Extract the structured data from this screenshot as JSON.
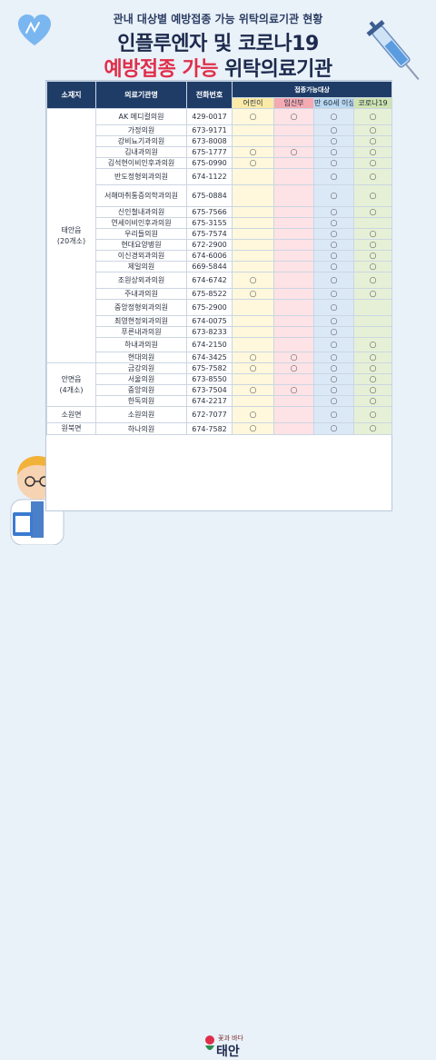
{
  "header": {
    "subtitle": "관내 대상별 예방접종 가능 위탁의료기관 현황",
    "title_line1": "인플루엔자 및 코로나19",
    "title_red": "예방접종 가능",
    "title_rest": "위탁의료기관"
  },
  "table": {
    "headers": {
      "region": "소재지",
      "name": "의료기관명",
      "phone": "전화번호",
      "target": "접종가능대상",
      "child": "어린이",
      "pregnant": "임신부",
      "elderly": "만 60세 이상",
      "covid": "코로나19"
    },
    "mark": "○",
    "groups": [
      {
        "region": "태안읍\n(20개소)",
        "rows": [
          {
            "name": "AK 메디컬의원",
            "phone": "429-0017",
            "child": true,
            "pregnant": true,
            "elderly": true,
            "covid": true
          },
          {
            "name": "가정의원",
            "phone": "673-9171",
            "child": false,
            "pregnant": false,
            "elderly": true,
            "covid": true
          },
          {
            "name": "강비뇨기과의원",
            "phone": "673-8008",
            "child": false,
            "pregnant": false,
            "elderly": true,
            "covid": true
          },
          {
            "name": "김내과의원",
            "phone": "675-1777",
            "child": true,
            "pregnant": true,
            "elderly": true,
            "covid": true
          },
          {
            "name": "김석현이비인후과의원",
            "phone": "675-0990",
            "child": true,
            "pregnant": false,
            "elderly": true,
            "covid": true
          },
          {
            "name": "반도정형외과의원",
            "phone": "674-1122",
            "child": false,
            "pregnant": false,
            "elderly": true,
            "covid": true
          },
          {
            "name": "서해마취통증의학과의원",
            "phone": "675-0884",
            "child": false,
            "pregnant": false,
            "elderly": true,
            "covid": true
          },
          {
            "name": "신인철내과의원",
            "phone": "675-7566",
            "child": false,
            "pregnant": false,
            "elderly": true,
            "covid": true
          },
          {
            "name": "연세이비인후과의원",
            "phone": "675-3155",
            "child": false,
            "pregnant": false,
            "elderly": true,
            "covid": false
          },
          {
            "name": "우리들의원",
            "phone": "675-7574",
            "child": false,
            "pregnant": false,
            "elderly": true,
            "covid": true
          },
          {
            "name": "현대요양병원",
            "phone": "672-2900",
            "child": false,
            "pregnant": false,
            "elderly": true,
            "covid": true
          },
          {
            "name": "이신경외과의원",
            "phone": "674-6006",
            "child": false,
            "pregnant": false,
            "elderly": true,
            "covid": true
          },
          {
            "name": "제일의원",
            "phone": "669-5844",
            "child": false,
            "pregnant": false,
            "elderly": true,
            "covid": true
          },
          {
            "name": "조원상외과의원",
            "phone": "674-6742",
            "child": true,
            "pregnant": false,
            "elderly": true,
            "covid": true
          },
          {
            "name": "주내과의원",
            "phone": "675-8522",
            "child": true,
            "pregnant": false,
            "elderly": true,
            "covid": true
          },
          {
            "name": "중앙정형외과의원",
            "phone": "675-2900",
            "child": false,
            "pregnant": false,
            "elderly": true,
            "covid": false
          },
          {
            "name": "최영현정외과의원",
            "phone": "674-0075",
            "child": false,
            "pregnant": false,
            "elderly": true,
            "covid": false
          },
          {
            "name": "푸른내과의원",
            "phone": "673-8233",
            "child": false,
            "pregnant": false,
            "elderly": true,
            "covid": false
          },
          {
            "name": "하내과의원",
            "phone": "674-2150",
            "child": false,
            "pregnant": false,
            "elderly": true,
            "covid": true
          },
          {
            "name": "현대의원",
            "phone": "674-3425",
            "child": true,
            "pregnant": true,
            "elderly": true,
            "covid": true
          }
        ]
      },
      {
        "region": "안면읍\n(4개소)",
        "rows": [
          {
            "name": "금강의원",
            "phone": "675-7582",
            "child": true,
            "pregnant": true,
            "elderly": true,
            "covid": true
          },
          {
            "name": "서울의원",
            "phone": "673-8550",
            "child": false,
            "pregnant": false,
            "elderly": true,
            "covid": true
          },
          {
            "name": "중앙의원",
            "phone": "673-7504",
            "child": true,
            "pregnant": true,
            "elderly": true,
            "covid": true
          },
          {
            "name": "한독의원",
            "phone": "674-2217",
            "child": false,
            "pregnant": false,
            "elderly": true,
            "covid": true
          }
        ]
      },
      {
        "region": "소원면",
        "rows": [
          {
            "name": "소원의원",
            "phone": "672-7077",
            "child": true,
            "pregnant": false,
            "elderly": true,
            "covid": true
          }
        ]
      },
      {
        "region": "원북면",
        "rows": [
          {
            "name": "하나의원",
            "phone": "674-7582",
            "child": true,
            "pregnant": false,
            "elderly": true,
            "covid": true
          }
        ]
      }
    ]
  },
  "footer": {
    "logo_sub": "꽃과 바다",
    "logo_main": "태안"
  },
  "colors": {
    "header_bg": "#1f3c67",
    "title_red": "#e02e4a",
    "child": "#fff8dc",
    "pregnant": "#fde2e6",
    "elderly": "#dbe9f7",
    "covid": "#e6f0d6"
  }
}
